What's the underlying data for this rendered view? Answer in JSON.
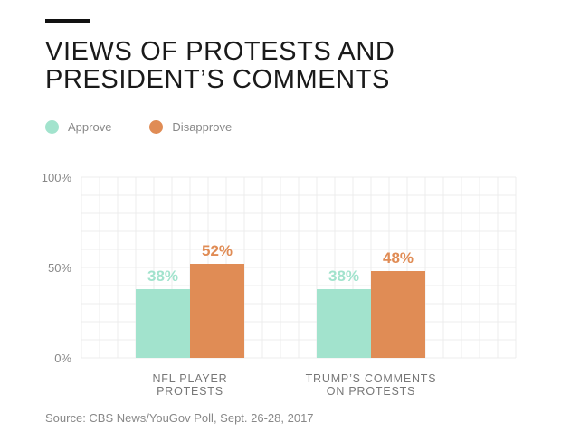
{
  "title_lines": [
    "VIEWS OF PROTESTS AND",
    "PRESIDENT’S COMMENTS"
  ],
  "legend": [
    {
      "label": "Approve",
      "color": "#a2e3cd"
    },
    {
      "label": "Disapprove",
      "color": "#e08c55"
    }
  ],
  "source": "Source: CBS News/YouGov Poll, Sept. 26-28, 2017",
  "chart_data": {
    "type": "bar",
    "categories": [
      [
        "NFL PLAYER",
        "PROTESTS"
      ],
      [
        "TRUMP’S COMMENTS",
        "ON PROTESTS"
      ]
    ],
    "series": [
      {
        "name": "Approve",
        "values": [
          38,
          38
        ],
        "labels": [
          "38%",
          "38%"
        ],
        "color": "#a2e3cd"
      },
      {
        "name": "Disapprove",
        "values": [
          52,
          48
        ],
        "labels": [
          "52%",
          "48%"
        ],
        "color": "#e08c55"
      }
    ],
    "ylim": [
      0,
      100
    ],
    "yticks": [
      0,
      50,
      100
    ],
    "ytick_labels": [
      "0%",
      "50%",
      "100%"
    ],
    "grid": true
  }
}
